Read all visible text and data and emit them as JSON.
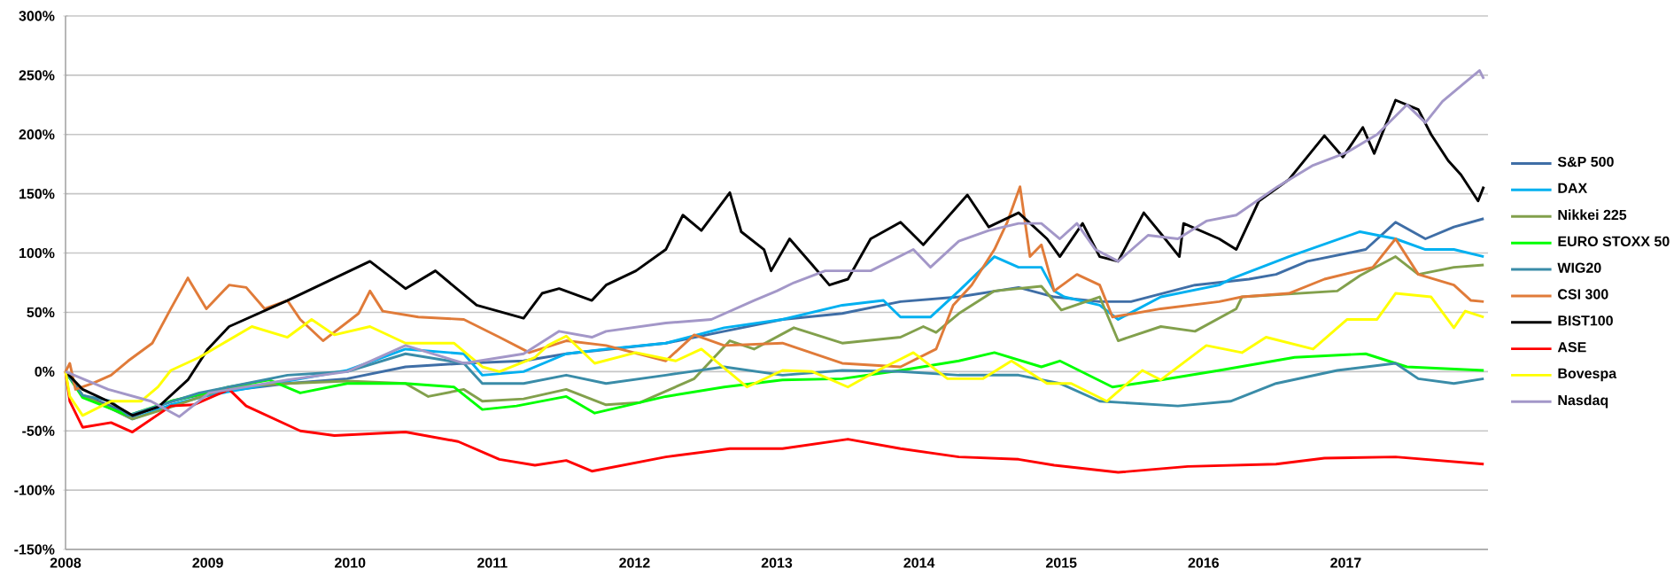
{
  "chart_data": {
    "type": "line",
    "xlim": [
      2008,
      2018
    ],
    "xticks": [
      2008,
      2009,
      2010,
      2011,
      2012,
      2013,
      2014,
      2015,
      2016,
      2017
    ],
    "ylim": [
      -150,
      300
    ],
    "yticks": [
      {
        "value": -150,
        "label": "-150%"
      },
      {
        "value": -100,
        "label": "-100%"
      },
      {
        "value": -50,
        "label": "-50%"
      },
      {
        "value": 0,
        "label": "0%"
      },
      {
        "value": 50,
        "label": "50%"
      },
      {
        "value": 100,
        "label": "100%"
      },
      {
        "value": 150,
        "label": "150%"
      },
      {
        "value": 200,
        "label": "200%"
      },
      {
        "value": 250,
        "label": "250%"
      },
      {
        "value": 300,
        "label": "300%"
      }
    ],
    "grid": "y",
    "legend": "right",
    "series": [
      {
        "name": "S&P 500",
        "color": "#3f6ea6",
        "x": [
          2008,
          2008.12,
          2008.3,
          2008.47,
          2008.74,
          2009.01,
          2009.56,
          2009.98,
          2010.39,
          2010.8,
          2011.22,
          2011.52,
          2012.22,
          2012.63,
          2013.04,
          2013.46,
          2013.87,
          2014.28,
          2014.7,
          2014.95,
          2015.27,
          2015.49,
          2015.94,
          2016.32,
          2016.51,
          2016.73,
          2017.14,
          2017.35,
          2017.56,
          2017.76,
          2017.97
        ],
        "values": [
          0,
          -20,
          -28,
          -38,
          -25,
          -18,
          -10,
          -6,
          4,
          7,
          9,
          15,
          24,
          34,
          44,
          49,
          59,
          63,
          71,
          63,
          59,
          59,
          73,
          78,
          82,
          93,
          103,
          126,
          112,
          122,
          129
        ]
      },
      {
        "name": "DAX",
        "color": "#00b0f0",
        "x": [
          2008.3,
          2008.47,
          2008.74,
          2009.01,
          2009.56,
          2009.98,
          2010.39,
          2010.8,
          2010.93,
          2011.22,
          2011.52,
          2011.8,
          2012.22,
          2012.63,
          2013.04,
          2013.46,
          2013.75,
          2013.87,
          2014.08,
          2014.28,
          2014.53,
          2014.7,
          2014.86,
          2014.95,
          2015.02,
          2015.27,
          2015.4,
          2015.7,
          2016.11,
          2016.19,
          2016.6,
          2017.1,
          2017.35,
          2017.56,
          2017.76,
          2017.97
        ],
        "values": [
          -30,
          -40,
          -28,
          -20,
          -8,
          1,
          19,
          15,
          -3,
          0,
          15,
          19,
          24,
          37,
          44,
          56,
          60,
          46,
          46,
          68,
          97,
          88,
          88,
          68,
          63,
          56,
          44,
          63,
          73,
          78,
          97,
          118,
          112,
          103,
          103,
          97
        ]
      },
      {
        "name": "Nikkei 225",
        "color": "#82a04c",
        "x": [
          2008,
          2008.12,
          2008.3,
          2008.47,
          2008.74,
          2009.15,
          2009.56,
          2009.98,
          2010.39,
          2010.55,
          2010.8,
          2010.93,
          2011.22,
          2011.52,
          2011.8,
          2012.04,
          2012.42,
          2012.67,
          2012.84,
          2013.12,
          2013.46,
          2013.87,
          2014.03,
          2014.12,
          2014.28,
          2014.53,
          2014.86,
          2015.0,
          2015.27,
          2015.4,
          2015.7,
          2015.94,
          2016.23,
          2016.27,
          2016.94,
          2017.1,
          2017.35,
          2017.51,
          2017.76,
          2017.97
        ],
        "values": [
          0,
          -20,
          -30,
          -40,
          -30,
          -13,
          -10,
          -8,
          -10,
          -21,
          -15,
          -25,
          -23,
          -15,
          -28,
          -26,
          -6,
          26,
          19,
          37,
          24,
          29,
          38,
          33,
          49,
          68,
          72,
          52,
          63,
          26,
          38,
          34,
          53,
          63,
          68,
          81,
          97,
          82,
          88,
          90
        ]
      },
      {
        "name": "EURO STOXX 50",
        "color": "#00ff00",
        "x": [
          2008,
          2008.12,
          2008.44,
          2008.74,
          2009.15,
          2009.43,
          2009.65,
          2009.98,
          2010.39,
          2010.73,
          2010.93,
          2011.17,
          2011.52,
          2011.72,
          2012.22,
          2012.63,
          2013.04,
          2013.46,
          2013.87,
          2014.28,
          2014.53,
          2014.86,
          2014.99,
          2015.36,
          2015.7,
          2016.11,
          2016.64,
          2017.14,
          2017.43,
          2017.97
        ],
        "values": [
          0,
          -22,
          -37,
          -25,
          -13,
          -7,
          -18,
          -10,
          -10,
          -13,
          -32,
          -29,
          -21,
          -35,
          -21,
          -13,
          -7,
          -6,
          1,
          9,
          16,
          4,
          9,
          -13,
          -7,
          1,
          12,
          15,
          4,
          1
        ]
      },
      {
        "name": "WIG20",
        "color": "#3a8ca8",
        "x": [
          2008,
          2008.12,
          2008.32,
          2008.44,
          2008.94,
          2009.56,
          2009.98,
          2010.39,
          2010.8,
          2010.93,
          2011.22,
          2011.52,
          2011.8,
          2012.22,
          2012.63,
          2013.04,
          2013.46,
          2013.87,
          2014.28,
          2014.7,
          2014.99,
          2015.27,
          2015.82,
          2016.19,
          2016.51,
          2016.94,
          2017.35,
          2017.51,
          2017.76,
          2017.97
        ],
        "values": [
          0,
          -20,
          -25,
          -37,
          -18,
          -3,
          0,
          15,
          7,
          -10,
          -10,
          -3,
          -10,
          -3,
          4,
          -3,
          1,
          0,
          -3,
          -3,
          -10,
          -25,
          -29,
          -25,
          -10,
          1,
          7,
          -6,
          -10,
          -6
        ]
      },
      {
        "name": "CSI 300",
        "color": "#e07b39",
        "x": [
          2008,
          2008.03,
          2008.07,
          2008.19,
          2008.32,
          2008.44,
          2008.61,
          2008.74,
          2008.86,
          2008.99,
          2009.15,
          2009.27,
          2009.4,
          2009.56,
          2009.65,
          2009.81,
          2010.06,
          2010.14,
          2010.23,
          2010.48,
          2010.8,
          2011.05,
          2011.26,
          2011.52,
          2011.8,
          2012.22,
          2012.42,
          2012.63,
          2013.04,
          2013.46,
          2013.87,
          2014.12,
          2014.24,
          2014.37,
          2014.53,
          2014.62,
          2014.71,
          2014.78,
          2014.86,
          2014.95,
          2015.11,
          2015.27,
          2015.36,
          2015.7,
          2016.11,
          2016.27,
          2016.6,
          2016.85,
          2017.19,
          2017.35,
          2017.51,
          2017.76,
          2017.88,
          2017.97
        ],
        "values": [
          0,
          7,
          -15,
          -10,
          -3,
          9,
          24,
          53,
          79,
          53,
          73,
          71,
          53,
          60,
          44,
          26,
          49,
          68,
          51,
          46,
          44,
          29,
          16,
          26,
          22,
          9,
          31,
          22,
          24,
          7,
          4,
          19,
          56,
          73,
          103,
          126,
          156,
          97,
          107,
          68,
          82,
          73,
          46,
          53,
          59,
          63,
          66,
          78,
          88,
          112,
          82,
          73,
          60,
          59
        ]
      },
      {
        "name": "BIST100",
        "color": "#000000",
        "x": [
          2008,
          2008.12,
          2008.3,
          2008.47,
          2008.65,
          2008.86,
          2009.0,
          2009.15,
          2009.56,
          2010.14,
          2010.39,
          2010.6,
          2010.89,
          2011.22,
          2011.35,
          2011.47,
          2011.7,
          2011.8,
          2012.01,
          2012.22,
          2012.34,
          2012.47,
          2012.67,
          2012.75,
          2012.91,
          2012.96,
          2013.09,
          2013.25,
          2013.37,
          2013.5,
          2013.66,
          2013.87,
          2014.03,
          2014.34,
          2014.49,
          2014.7,
          2014.9,
          2014.99,
          2015.15,
          2015.27,
          2015.4,
          2015.58,
          2015.73,
          2015.83,
          2015.86,
          2016.11,
          2016.23,
          2016.39,
          2016.6,
          2016.85,
          2016.98,
          2017.12,
          2017.2,
          2017.35,
          2017.51,
          2017.6,
          2017.72,
          2017.81,
          2017.93,
          2017.97
        ],
        "values": [
          0,
          -15,
          -25,
          -37,
          -30,
          -7,
          19,
          38,
          60,
          93,
          70,
          85,
          56,
          45,
          66,
          70,
          60,
          73,
          85,
          103,
          132,
          119,
          151,
          118,
          103,
          85,
          112,
          90,
          73,
          78,
          112,
          126,
          107,
          149,
          122,
          134,
          112,
          97,
          125,
          97,
          93,
          134,
          112,
          97,
          125,
          112,
          103,
          144,
          162,
          199,
          181,
          206,
          184,
          229,
          221,
          200,
          178,
          166,
          144,
          156
        ]
      },
      {
        "name": "ASE",
        "color": "#ff0000",
        "x": [
          2008,
          2008.03,
          2008.12,
          2008.32,
          2008.47,
          2008.74,
          2008.9,
          2009.15,
          2009.27,
          2009.65,
          2009.89,
          2010.39,
          2010.76,
          2011.05,
          2011.3,
          2011.52,
          2011.7,
          2012.22,
          2012.67,
          2013.04,
          2013.5,
          2013.87,
          2014.28,
          2014.7,
          2014.95,
          2015.4,
          2015.89,
          2016.51,
          2016.85,
          2017.35,
          2017.97
        ],
        "values": [
          0,
          -25,
          -47,
          -43,
          -51,
          -29,
          -28,
          -15,
          -29,
          -50,
          -54,
          -51,
          -59,
          -74,
          -79,
          -75,
          -84,
          -72,
          -65,
          -65,
          -57,
          -65,
          -72,
          -74,
          -79,
          -85,
          -80,
          -78,
          -73,
          -72,
          -78
        ]
      },
      {
        "name": "Bovespa",
        "color": "#ffff00",
        "x": [
          2008,
          2008.03,
          2008.12,
          2008.32,
          2008.53,
          2008.65,
          2008.74,
          2008.94,
          2009.11,
          2009.31,
          2009.56,
          2009.73,
          2009.89,
          2010.14,
          2010.39,
          2010.73,
          2010.93,
          2011.05,
          2011.3,
          2011.39,
          2011.52,
          2011.72,
          2012.01,
          2012.29,
          2012.47,
          2012.79,
          2013.04,
          2013.25,
          2013.5,
          2013.71,
          2013.96,
          2014.2,
          2014.45,
          2014.65,
          2014.9,
          2015.07,
          2015.32,
          2015.57,
          2015.7,
          2016.02,
          2016.27,
          2016.44,
          2016.77,
          2017.01,
          2017.22,
          2017.35,
          2017.6,
          2017.76,
          2017.84,
          2017.97
        ],
        "values": [
          0,
          -21,
          -37,
          -25,
          -25,
          -13,
          1,
          12,
          24,
          38,
          29,
          44,
          31,
          38,
          24,
          24,
          4,
          0,
          12,
          22,
          30,
          7,
          16,
          9,
          19,
          -13,
          1,
          0,
          -13,
          1,
          16,
          -6,
          -6,
          9,
          -10,
          -10,
          -25,
          1,
          -7,
          22,
          16,
          29,
          19,
          44,
          44,
          66,
          63,
          37,
          51,
          46
        ]
      },
      {
        "name": "Nasdaq",
        "color": "#a397c8",
        "x": [
          2008,
          2008.3,
          2008.6,
          2008.8,
          2009.01,
          2009.56,
          2009.98,
          2010.39,
          2010.8,
          2011.22,
          2011.47,
          2011.7,
          2011.8,
          2012.22,
          2012.54,
          2012.84,
          2013.0,
          2013.12,
          2013.34,
          2013.66,
          2013.96,
          2014.08,
          2014.28,
          2014.49,
          2014.7,
          2014.86,
          2014.99,
          2015.11,
          2015.24,
          2015.4,
          2015.61,
          2015.82,
          2016.02,
          2016.23,
          2016.52,
          2016.77,
          2017.01,
          2017.22,
          2017.43,
          2017.56,
          2017.68,
          2017.84,
          2017.94,
          2017.97
        ],
        "values": [
          0,
          -15,
          -25,
          -38,
          -18,
          -7,
          0,
          22,
          7,
          15,
          34,
          29,
          34,
          41,
          44,
          60,
          68,
          75,
          85,
          85,
          103,
          88,
          110,
          119,
          125,
          125,
          112,
          125,
          103,
          93,
          115,
          112,
          127,
          132,
          156,
          174,
          185,
          200,
          225,
          210,
          228,
          244,
          254,
          247
        ]
      }
    ]
  }
}
